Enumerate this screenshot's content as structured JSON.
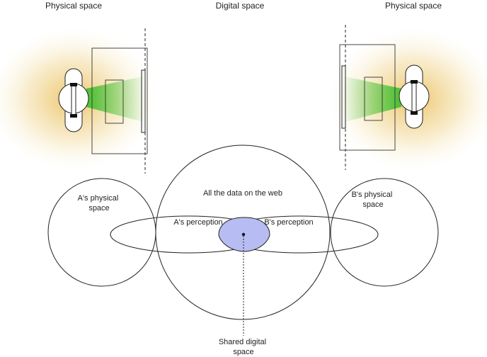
{
  "headers": {
    "left": "Physical space",
    "center": "Digital space",
    "right": "Physical space"
  },
  "venn": {
    "a_space": [
      "A's physical",
      "space"
    ],
    "b_space": [
      "B's physical",
      "space"
    ],
    "web": "All the data on the web",
    "a_perception": "A's perception",
    "b_perception": "B's perception",
    "shared": [
      "Shared digital",
      "space"
    ]
  },
  "colors": {
    "glow": "#f3dca0",
    "view_cone": "#5fc44a",
    "shared_fill": "#b7bdf2",
    "stroke": "#222222"
  }
}
